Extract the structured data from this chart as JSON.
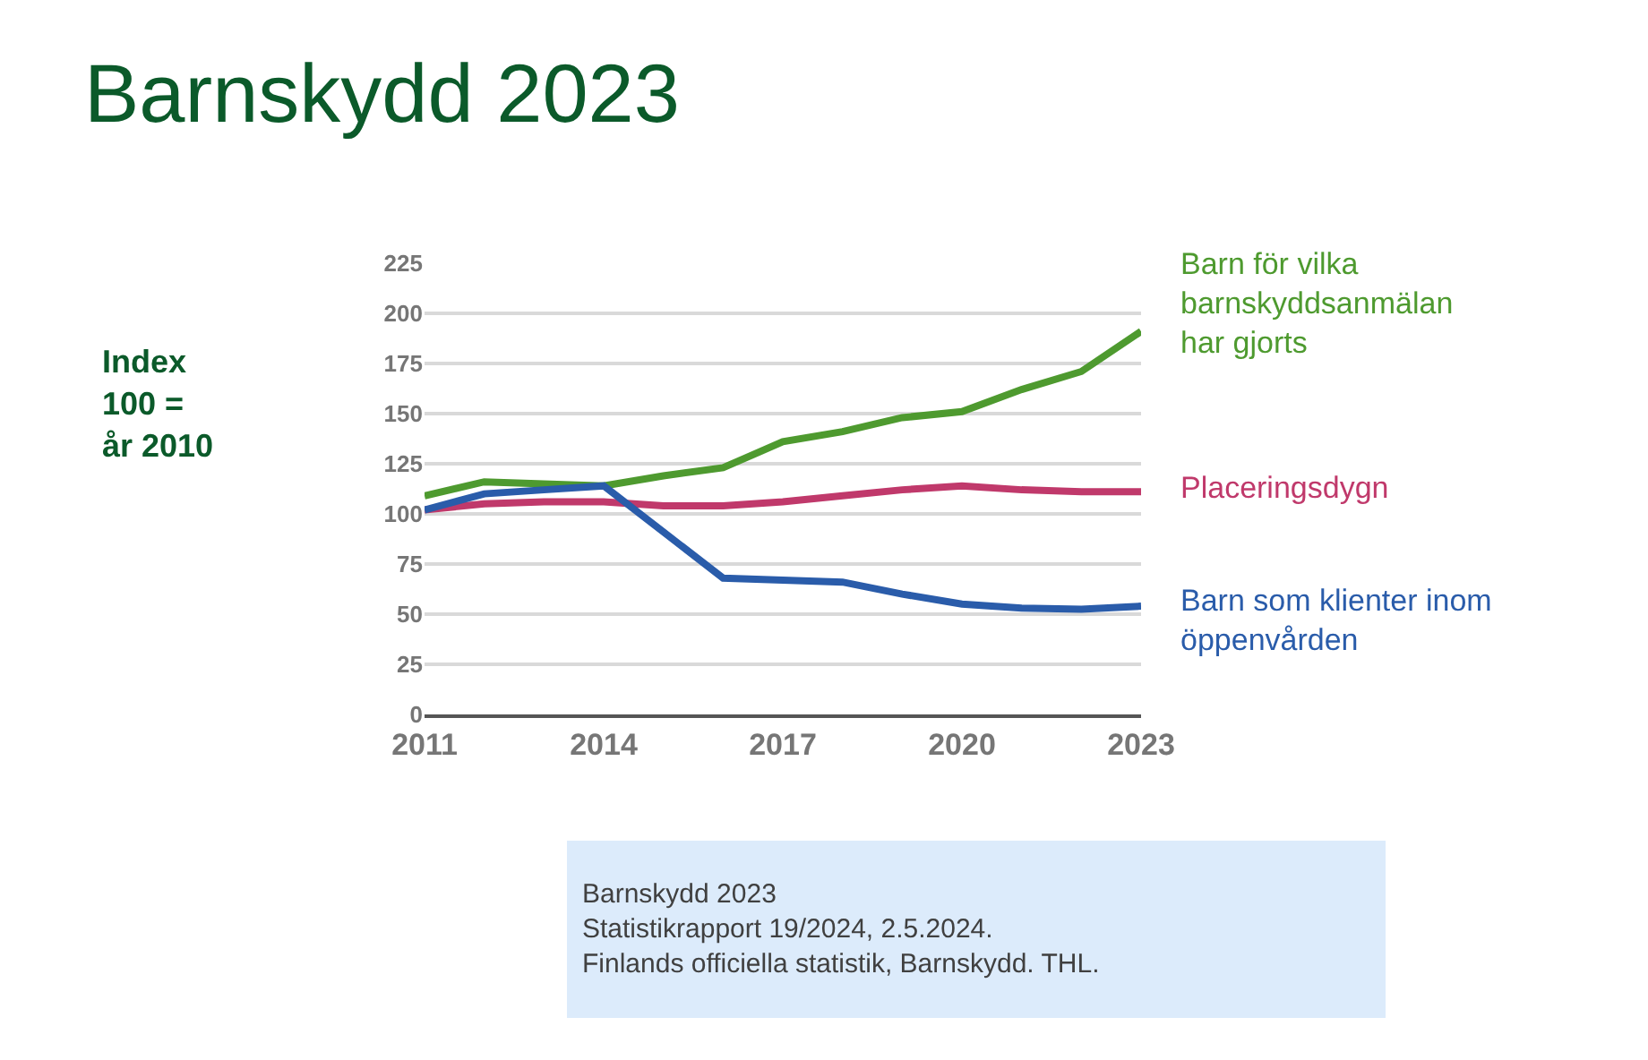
{
  "chart_data": {
    "type": "line",
    "title": "Barnskydd 2023",
    "x": [
      2011,
      2012,
      2013,
      2014,
      2015,
      2016,
      2017,
      2018,
      2019,
      2020,
      2021,
      2022,
      2023
    ],
    "series": [
      {
        "name": "Barn för vilka\nbarnskyddsanmälan\nhar gjorts",
        "color": "#4e9a2f",
        "values": [
          109,
          116,
          115,
          114,
          119,
          123,
          136,
          141,
          148,
          151,
          162,
          171,
          191
        ]
      },
      {
        "name": "Placeringsdygn",
        "color": "#c0396b",
        "values": [
          102,
          105,
          106,
          106,
          104,
          104,
          106,
          109,
          112,
          114,
          112,
          111,
          111
        ]
      },
      {
        "name": "Barn som klienter inom\nöppenvården",
        "color": "#2a5caa",
        "values": [
          102,
          110,
          112,
          114,
          91,
          68,
          67,
          66,
          60,
          55,
          53,
          52.5,
          54
        ]
      }
    ],
    "xlim": [
      2011,
      2023
    ],
    "xticks": [
      2011,
      2014,
      2017,
      2020,
      2023
    ],
    "ylim": [
      0,
      225
    ],
    "yticks": [
      0,
      25,
      50,
      75,
      100,
      125,
      150,
      175,
      200,
      225
    ],
    "grid": "y",
    "legend": false,
    "marker": "none",
    "line_style": "solid",
    "annotations": [
      "Index\n100 =\når 2010",
      "Barnskydd 2023\nStatistikrapport 19/2024, 2.5.2024.\nFinlands officiella statistik, Barnskydd. THL."
    ]
  }
}
